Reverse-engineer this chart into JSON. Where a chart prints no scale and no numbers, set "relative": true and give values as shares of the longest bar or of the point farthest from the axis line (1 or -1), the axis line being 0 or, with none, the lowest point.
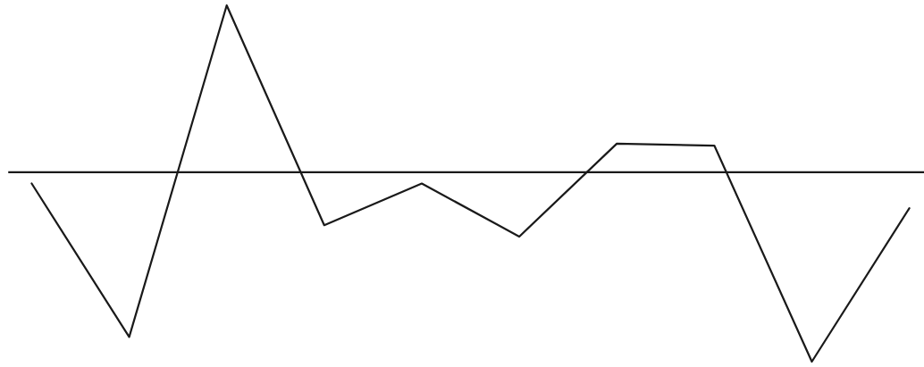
{
  "chart_data": {
    "type": "line",
    "relative": true,
    "categories": [
      null,
      null,
      null,
      null,
      null,
      null,
      null,
      null,
      null,
      null
    ],
    "series": [
      {
        "color": "#1a1a1a",
        "values": [
          -0.06,
          -0.87,
          0.88,
          -0.28,
          -0.06,
          -0.34,
          0.15,
          0.14,
          -1,
          -0.19
        ]
      }
    ],
    "marker": "none",
    "line_style": "solid",
    "grid": false,
    "legend": false
  }
}
